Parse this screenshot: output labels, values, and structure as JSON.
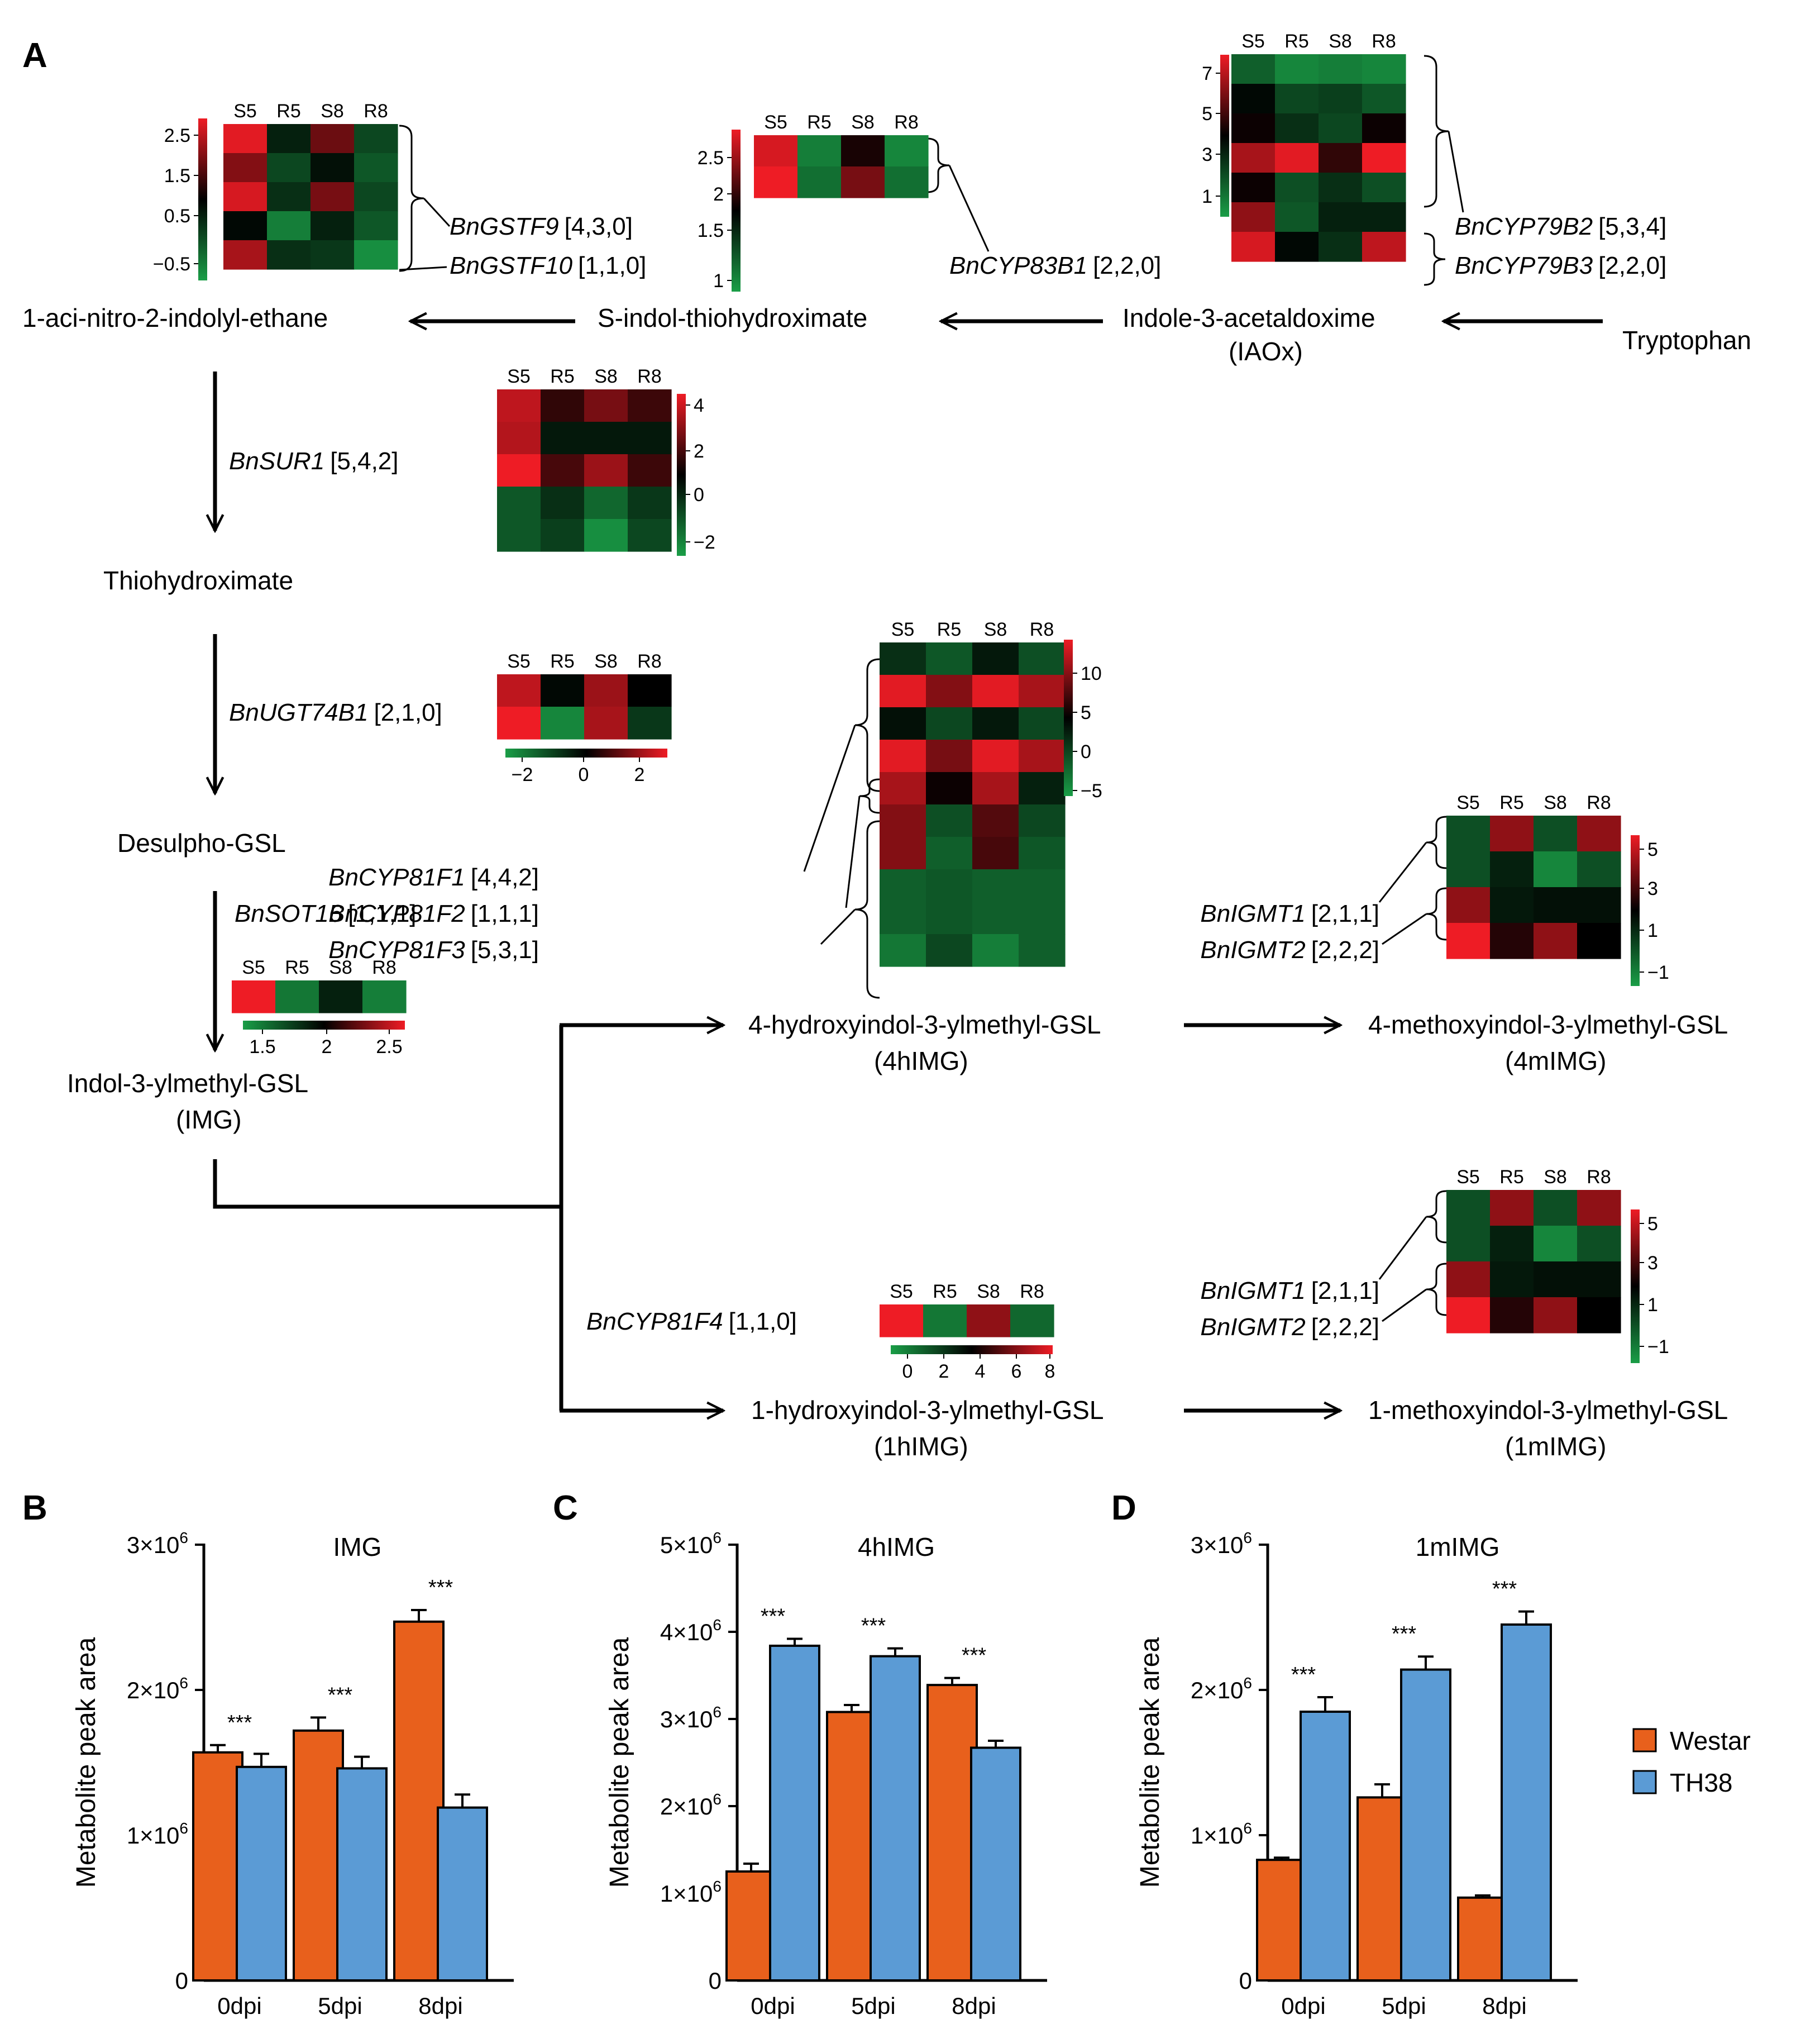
{
  "panels": {
    "a": "A",
    "b": "B",
    "c": "C",
    "d": "D"
  },
  "colors": {
    "heat_low": "#1a9e47",
    "heat_mid": "#000000",
    "heat_high": "#ee1c25",
    "westar": "#e8601c",
    "th38": "#5b9bd5"
  },
  "conditions": [
    "S5",
    "R5",
    "S8",
    "R8"
  ],
  "metabolites": {
    "aci_nitro": "1-aci-nitro-2-indolyl-ethane",
    "s_indol": "S-indol-thiohydroximate",
    "iaox": "Indole-3-acetaldoxime",
    "iaox_abbr": "(IAOx)",
    "tryptophan": "Tryptophan",
    "thiohydroximate": "Thiohydroximate",
    "desulpho": "Desulpho-GSL",
    "img": "Indol-3-ylmethyl-GSL",
    "img_abbr": "(IMG)",
    "h4": "4-hydroxyindol-3-ylmethyl-GSL",
    "h4_abbr": "(4hIMG)",
    "m4": "4-methoxyindol-3-ylmethyl-GSL",
    "m4_abbr": "(4mIMG)",
    "h1": "1-hydroxyindol-3-ylmethyl-GSL",
    "h1_abbr": "(1hIMG)",
    "m1": "1-methoxyindol-3-ylmethyl-GSL",
    "m1_abbr": "(1mIMG)"
  },
  "genes": {
    "gstf9": {
      "name": "BnGSTF9",
      "counts": "[4,3,0]"
    },
    "gstf10": {
      "name": "BnGSTF10",
      "counts": "[1,1,0]"
    },
    "cyp83b1": {
      "name": "BnCYP83B1",
      "counts": "[2,2,0]"
    },
    "cyp79b2": {
      "name": "BnCYP79B2",
      "counts": "[5,3,4]"
    },
    "cyp79b3": {
      "name": "BnCYP79B3",
      "counts": "[2,2,0]"
    },
    "sur1": {
      "name": "BnSUR1",
      "counts": "[5,4,2]"
    },
    "ugt74b1": {
      "name": "BnUGT74B1",
      "counts": "[2,1,0]"
    },
    "sot16": {
      "name": "BnSOT16",
      "counts": "[1,1,1]"
    },
    "cyp81f1": {
      "name": "BnCYP81F1",
      "counts": "[4,4,2]"
    },
    "cyp81f2": {
      "name": "BnCYP81F2",
      "counts": "[1,1,1]"
    },
    "cyp81f3": {
      "name": "BnCYP81F3",
      "counts": "[5,3,1]"
    },
    "igmt1_a": {
      "name": "BnIGMT1",
      "counts": "[2,1,1]"
    },
    "igmt2_a": {
      "name": "BnIGMT2",
      "counts": "[2,2,2]"
    },
    "igmt1_b": {
      "name": "BnIGMT1",
      "counts": "[2,1,1]"
    },
    "igmt2_b": {
      "name": "BnIGMT2",
      "counts": "[2,2,2]"
    },
    "cyp81f4": {
      "name": "BnCYP81F4",
      "counts": "[1,1,0]"
    }
  },
  "scales": {
    "gstf": [
      "2.5",
      "1.5",
      "0.5",
      "−0.5"
    ],
    "cyp83b1": [
      "2.5",
      "2",
      "1.5",
      "1"
    ],
    "cyp79": [
      "7",
      "5",
      "3",
      "1"
    ],
    "sur1": [
      "4",
      "2",
      "0",
      "−2"
    ],
    "ugt74b1": [
      "−2",
      "0",
      "2"
    ],
    "sot16": [
      "1.5",
      "2",
      "2.5"
    ],
    "cyp81f": [
      "10",
      "5",
      "0",
      "−5"
    ],
    "igmt_a": [
      "5",
      "3",
      "1",
      "−1"
    ],
    "igmt_b": [
      "5",
      "3",
      "1",
      "−1"
    ],
    "cyp81f4": [
      "0",
      "2",
      "4",
      "6",
      "8"
    ]
  },
  "heatmaps": {
    "gstf": [
      [
        0.95,
        -0.2,
        0.45,
        -0.45
      ],
      [
        0.55,
        -0.45,
        -0.1,
        -0.55
      ],
      [
        0.9,
        -0.3,
        0.5,
        -0.45
      ],
      [
        -0.05,
        -0.8,
        -0.2,
        -0.55
      ],
      [
        0.7,
        -0.3,
        -0.35,
        -0.9
      ]
    ],
    "cyp83b1": [
      [
        0.9,
        -0.8,
        0.1,
        -0.85
      ],
      [
        1.0,
        -0.7,
        0.5,
        -0.7
      ]
    ],
    "cyp79": [
      [
        -0.6,
        -0.85,
        -0.8,
        -0.85
      ],
      [
        -0.05,
        -0.45,
        -0.4,
        -0.55
      ],
      [
        0.05,
        -0.3,
        -0.45,
        0.05
      ],
      [
        0.7,
        0.95,
        0.2,
        1.0
      ],
      [
        0.05,
        -0.5,
        -0.3,
        -0.5
      ],
      [
        0.6,
        -0.55,
        -0.2,
        -0.2
      ],
      [
        0.9,
        -0.05,
        -0.3,
        0.8
      ]
    ],
    "sur1": [
      [
        0.8,
        0.2,
        0.5,
        0.25
      ],
      [
        0.75,
        -0.15,
        -0.15,
        -0.15
      ],
      [
        1.0,
        0.3,
        0.65,
        0.25
      ],
      [
        -0.55,
        -0.3,
        -0.65,
        -0.35
      ],
      [
        -0.55,
        -0.4,
        -0.9,
        -0.45
      ]
    ],
    "ugt74b1": [
      [
        0.8,
        -0.05,
        0.65,
        0.0
      ],
      [
        1.0,
        -0.85,
        0.7,
        -0.35
      ]
    ],
    "sot16": [
      [
        1.0,
        -0.75,
        -0.2,
        -0.8
      ]
    ],
    "cyp81f": [
      [
        -0.3,
        -0.55,
        -0.15,
        -0.5
      ],
      [
        0.95,
        0.55,
        0.95,
        0.7
      ],
      [
        -0.1,
        -0.45,
        -0.15,
        -0.45
      ],
      [
        0.95,
        0.5,
        0.95,
        0.7
      ],
      [
        0.7,
        0.05,
        0.7,
        -0.2
      ],
      [
        0.55,
        -0.5,
        0.35,
        -0.45
      ],
      [
        0.55,
        -0.6,
        0.3,
        -0.55
      ],
      [
        -0.6,
        -0.55,
        -0.6,
        -0.6
      ],
      [
        -0.6,
        -0.55,
        -0.6,
        -0.6
      ],
      [
        -0.75,
        -0.45,
        -0.8,
        -0.6
      ]
    ],
    "igmt_a": [
      [
        -0.5,
        0.6,
        -0.5,
        0.6
      ],
      [
        -0.5,
        -0.2,
        -0.85,
        -0.5
      ],
      [
        0.6,
        -0.15,
        -0.1,
        -0.1
      ],
      [
        1.0,
        0.15,
        0.6,
        0.0
      ]
    ],
    "igmt_b": [
      [
        -0.5,
        0.6,
        -0.5,
        0.6
      ],
      [
        -0.5,
        -0.2,
        -0.85,
        -0.5
      ],
      [
        0.6,
        -0.15,
        -0.1,
        -0.1
      ],
      [
        1.0,
        0.15,
        0.6,
        0.0
      ]
    ],
    "cyp81f4": [
      [
        1.0,
        -0.75,
        0.6,
        -0.65
      ]
    ]
  },
  "chart_data": [
    {
      "type": "bar",
      "title": "IMG",
      "ylabel": "Metabolite peak area",
      "categories": [
        "0dpi",
        "5dpi",
        "8dpi"
      ],
      "ylim": [
        0,
        3000000
      ],
      "yticks": [
        0,
        1000000,
        2000000,
        3000000
      ],
      "ytick_labels": {
        "base": [
          "0",
          "1×10",
          "2×10",
          "3×10"
        ],
        "exp": [
          "",
          "6",
          "6",
          "6"
        ]
      },
      "series": [
        {
          "name": "Westar",
          "values": [
            1570000,
            1720000,
            2470000
          ],
          "errors": [
            50000,
            90000,
            80000
          ]
        },
        {
          "name": "TH38",
          "values": [
            1470000,
            1460000,
            1190000
          ],
          "errors": [
            90000,
            80000,
            90000
          ]
        }
      ],
      "annotations": [
        "***",
        "***",
        "***"
      ]
    },
    {
      "type": "bar",
      "title": "4hIMG",
      "ylabel": "Metabolite peak area",
      "categories": [
        "0dpi",
        "5dpi",
        "8dpi"
      ],
      "ylim": [
        0,
        5000000
      ],
      "yticks": [
        0,
        1000000,
        2000000,
        3000000,
        4000000,
        5000000
      ],
      "ytick_labels": {
        "base": [
          "0",
          "1×10",
          "2×10",
          "3×10",
          "4×10",
          "5×10"
        ],
        "exp": [
          "",
          "6",
          "6",
          "6",
          "6",
          "6"
        ]
      },
      "series": [
        {
          "name": "Westar",
          "values": [
            1250000,
            3080000,
            3390000
          ],
          "errors": [
            90000,
            80000,
            80000
          ]
        },
        {
          "name": "TH38",
          "values": [
            3840000,
            3720000,
            2670000
          ],
          "errors": [
            80000,
            90000,
            80000
          ]
        }
      ],
      "annotations": [
        "***",
        "***",
        "***"
      ]
    },
    {
      "type": "bar",
      "title": "1mIMG",
      "ylabel": "Metabolite peak area",
      "categories": [
        "0dpi",
        "5dpi",
        "8dpi"
      ],
      "ylim": [
        0,
        3000000
      ],
      "yticks": [
        0,
        1000000,
        2000000,
        3000000
      ],
      "ytick_labels": {
        "base": [
          "0",
          "1×10",
          "2×10",
          "3×10"
        ],
        "exp": [
          "",
          "6",
          "6",
          "6"
        ]
      },
      "series": [
        {
          "name": "Westar",
          "values": [
            830000,
            1260000,
            570000
          ],
          "errors": [
            15000,
            90000,
            15000
          ]
        },
        {
          "name": "TH38",
          "values": [
            1850000,
            2140000,
            2450000
          ],
          "errors": [
            100000,
            90000,
            90000
          ]
        }
      ],
      "annotations": [
        "***",
        "***",
        "***"
      ]
    }
  ],
  "legend": {
    "westar": "Westar",
    "th38": "TH38"
  }
}
